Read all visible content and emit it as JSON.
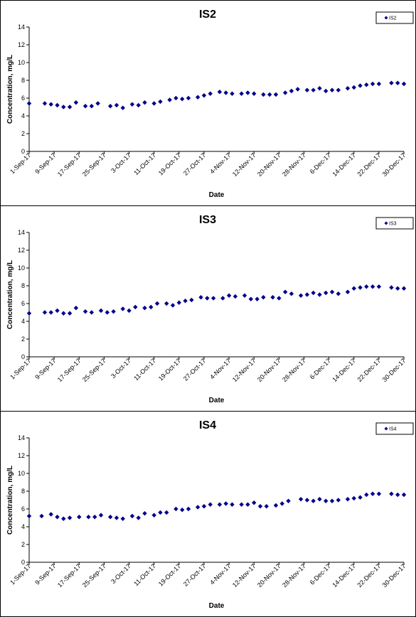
{
  "chart_data": [
    {
      "type": "scatter",
      "title": "IS2",
      "xlabel": "Date",
      "ylabel": "Concentration, mg/L",
      "ylim": [
        0,
        14
      ],
      "yticks": [
        0,
        2,
        4,
        6,
        8,
        10,
        12,
        14
      ],
      "xlim": [
        "2017-09-01",
        "2017-12-30"
      ],
      "xticks": [
        "1-Sep-17",
        "9-Sep-17",
        "17-Sep-17",
        "25-Sep-17",
        "3-Oct-17",
        "11-Oct-17",
        "19-Oct-17",
        "27-Oct-17",
        "4-Nov-17",
        "12-Nov-17",
        "20-Nov-17",
        "28-Nov-17",
        "6-Dec-17",
        "14-Dec-17",
        "22-Dec-17",
        "30-Dec-17"
      ],
      "grid": false,
      "legend_position": "top-right",
      "color": "#00008B",
      "series": [
        {
          "name": "IS2",
          "x": [
            "2017-09-01",
            "2017-09-06",
            "2017-09-08",
            "2017-09-10",
            "2017-09-12",
            "2017-09-14",
            "2017-09-16",
            "2017-09-19",
            "2017-09-21",
            "2017-09-23",
            "2017-09-27",
            "2017-09-29",
            "2017-10-01",
            "2017-10-04",
            "2017-10-06",
            "2017-10-08",
            "2017-10-11",
            "2017-10-13",
            "2017-10-16",
            "2017-10-18",
            "2017-10-20",
            "2017-10-22",
            "2017-10-25",
            "2017-10-27",
            "2017-10-29",
            "2017-11-01",
            "2017-11-03",
            "2017-11-05",
            "2017-11-08",
            "2017-11-10",
            "2017-11-12",
            "2017-11-15",
            "2017-11-17",
            "2017-11-19",
            "2017-11-22",
            "2017-11-24",
            "2017-11-26",
            "2017-11-29",
            "2017-12-01",
            "2017-12-03",
            "2017-12-05",
            "2017-12-07",
            "2017-12-09",
            "2017-12-12",
            "2017-12-14",
            "2017-12-16",
            "2017-12-18",
            "2017-12-20",
            "2017-12-22",
            "2017-12-26",
            "2017-12-28",
            "2017-12-30"
          ],
          "y": [
            5.4,
            5.4,
            5.3,
            5.2,
            5.0,
            5.0,
            5.5,
            5.1,
            5.1,
            5.4,
            5.1,
            5.2,
            4.9,
            5.3,
            5.2,
            5.5,
            5.4,
            5.6,
            5.8,
            6.0,
            5.9,
            6.0,
            6.1,
            6.3,
            6.5,
            6.7,
            6.6,
            6.5,
            6.5,
            6.6,
            6.5,
            6.4,
            6.4,
            6.4,
            6.6,
            6.8,
            7.0,
            6.9,
            6.9,
            7.1,
            6.8,
            6.9,
            6.9,
            7.1,
            7.2,
            7.4,
            7.5,
            7.6,
            7.6,
            7.7,
            7.7,
            7.6
          ]
        }
      ]
    },
    {
      "type": "scatter",
      "title": "IS3",
      "xlabel": "Date",
      "ylabel": "Concentration, mg/L",
      "ylim": [
        0,
        14
      ],
      "yticks": [
        0,
        2,
        4,
        6,
        8,
        10,
        12,
        14
      ],
      "xlim": [
        "2017-09-01",
        "2017-12-30"
      ],
      "xticks": [
        "1-Sep-17",
        "9-Sep-17",
        "17-Sep-17",
        "25-Sep-17",
        "3-Oct-17",
        "11-Oct-17",
        "19-Oct-17",
        "27-Oct-17",
        "4-Nov-17",
        "12-Nov-17",
        "20-Nov-17",
        "28-Nov-17",
        "6-Dec-17",
        "14-Dec-17",
        "22-Dec-17",
        "30-Dec-17"
      ],
      "grid": false,
      "legend_position": "top-right",
      "color": "#00008B",
      "series": [
        {
          "name": "IS3",
          "x": [
            "2017-09-01",
            "2017-09-06",
            "2017-09-08",
            "2017-09-10",
            "2017-09-12",
            "2017-09-14",
            "2017-09-16",
            "2017-09-19",
            "2017-09-21",
            "2017-09-24",
            "2017-09-26",
            "2017-09-28",
            "2017-10-01",
            "2017-10-03",
            "2017-10-05",
            "2017-10-08",
            "2017-10-10",
            "2017-10-12",
            "2017-10-15",
            "2017-10-17",
            "2017-10-19",
            "2017-10-21",
            "2017-10-23",
            "2017-10-26",
            "2017-10-28",
            "2017-10-30",
            "2017-11-02",
            "2017-11-04",
            "2017-11-06",
            "2017-11-09",
            "2017-11-11",
            "2017-11-13",
            "2017-11-15",
            "2017-11-18",
            "2017-11-20",
            "2017-11-22",
            "2017-11-24",
            "2017-11-27",
            "2017-11-29",
            "2017-12-01",
            "2017-12-03",
            "2017-12-05",
            "2017-12-07",
            "2017-12-09",
            "2017-12-12",
            "2017-12-14",
            "2017-12-16",
            "2017-12-18",
            "2017-12-20",
            "2017-12-22",
            "2017-12-26",
            "2017-12-28",
            "2017-12-30"
          ],
          "y": [
            4.9,
            5.0,
            5.0,
            5.2,
            4.9,
            4.9,
            5.5,
            5.1,
            5.0,
            5.2,
            5.0,
            5.1,
            5.4,
            5.2,
            5.6,
            5.5,
            5.6,
            6.0,
            6.0,
            5.8,
            6.1,
            6.3,
            6.4,
            6.7,
            6.6,
            6.6,
            6.6,
            6.9,
            6.8,
            6.9,
            6.5,
            6.5,
            6.7,
            6.7,
            6.6,
            7.3,
            7.1,
            6.9,
            7.0,
            7.2,
            7.0,
            7.2,
            7.3,
            7.1,
            7.3,
            7.7,
            7.8,
            7.9,
            7.9,
            7.9,
            7.8,
            7.7,
            7.7
          ]
        }
      ]
    },
    {
      "type": "scatter",
      "title": "IS4",
      "xlabel": "Date",
      "ylabel": "Concentration, mg/L",
      "ylim": [
        0,
        14
      ],
      "yticks": [
        0,
        2,
        4,
        6,
        8,
        10,
        12,
        14
      ],
      "xlim": [
        "2017-09-01",
        "2017-12-30"
      ],
      "xticks": [
        "1-Sep-17",
        "9-Sep-17",
        "17-Sep-17",
        "25-Sep-17",
        "3-Oct-17",
        "11-Oct-17",
        "19-Oct-17",
        "27-Oct-17",
        "4-Nov-17",
        "12-Nov-17",
        "20-Nov-17",
        "28-Nov-17",
        "6-Dec-17",
        "14-Dec-17",
        "22-Dec-17",
        "30-Dec-17"
      ],
      "grid": false,
      "legend_position": "top-right",
      "color": "#00008B",
      "series": [
        {
          "name": "IS4",
          "x": [
            "2017-09-01",
            "2017-09-05",
            "2017-09-08",
            "2017-09-10",
            "2017-09-12",
            "2017-09-14",
            "2017-09-17",
            "2017-09-20",
            "2017-09-22",
            "2017-09-24",
            "2017-09-27",
            "2017-09-29",
            "2017-10-01",
            "2017-10-04",
            "2017-10-06",
            "2017-10-08",
            "2017-10-11",
            "2017-10-13",
            "2017-10-15",
            "2017-10-18",
            "2017-10-20",
            "2017-10-22",
            "2017-10-25",
            "2017-10-27",
            "2017-10-29",
            "2017-11-01",
            "2017-11-03",
            "2017-11-05",
            "2017-11-08",
            "2017-11-10",
            "2017-11-12",
            "2017-11-14",
            "2017-11-16",
            "2017-11-19",
            "2017-11-21",
            "2017-11-23",
            "2017-11-27",
            "2017-11-29",
            "2017-12-01",
            "2017-12-03",
            "2017-12-05",
            "2017-12-07",
            "2017-12-09",
            "2017-12-12",
            "2017-12-14",
            "2017-12-16",
            "2017-12-18",
            "2017-12-20",
            "2017-12-22",
            "2017-12-26",
            "2017-12-28",
            "2017-12-30"
          ],
          "y": [
            5.2,
            5.2,
            5.4,
            5.1,
            4.9,
            5.0,
            5.1,
            5.1,
            5.1,
            5.3,
            5.1,
            5.0,
            4.9,
            5.2,
            5.0,
            5.5,
            5.3,
            5.6,
            5.6,
            6.0,
            5.9,
            6.0,
            6.2,
            6.3,
            6.5,
            6.5,
            6.6,
            6.5,
            6.5,
            6.5,
            6.7,
            6.3,
            6.3,
            6.4,
            6.6,
            6.9,
            7.1,
            7.0,
            6.9,
            7.1,
            6.9,
            6.9,
            7.0,
            7.1,
            7.2,
            7.3,
            7.6,
            7.7,
            7.7,
            7.7,
            7.6,
            7.6
          ]
        }
      ]
    }
  ]
}
